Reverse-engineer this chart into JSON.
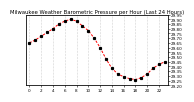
{
  "title": "Milwaukee Weather Barometric Pressure per Hour (Last 24 Hours)",
  "hours": [
    0,
    1,
    2,
    3,
    4,
    5,
    6,
    7,
    8,
    9,
    10,
    11,
    12,
    13,
    14,
    15,
    16,
    17,
    18,
    19,
    20,
    21,
    22,
    23
  ],
  "pressure": [
    29.65,
    29.68,
    29.72,
    29.76,
    29.8,
    29.85,
    29.88,
    29.9,
    29.88,
    29.83,
    29.78,
    29.7,
    29.6,
    29.48,
    29.38,
    29.32,
    29.29,
    29.27,
    29.26,
    29.28,
    29.32,
    29.38,
    29.42,
    29.45
  ],
  "line_color": "#ff0000",
  "marker_color": "#000000",
  "background_color": "#ffffff",
  "grid_color": "#aaaaaa",
  "ylim_min": 29.2,
  "ylim_max": 29.95,
  "ytick_step": 0.05,
  "title_fontsize": 3.8,
  "tick_fontsize": 3.0,
  "xtick_step": 2
}
